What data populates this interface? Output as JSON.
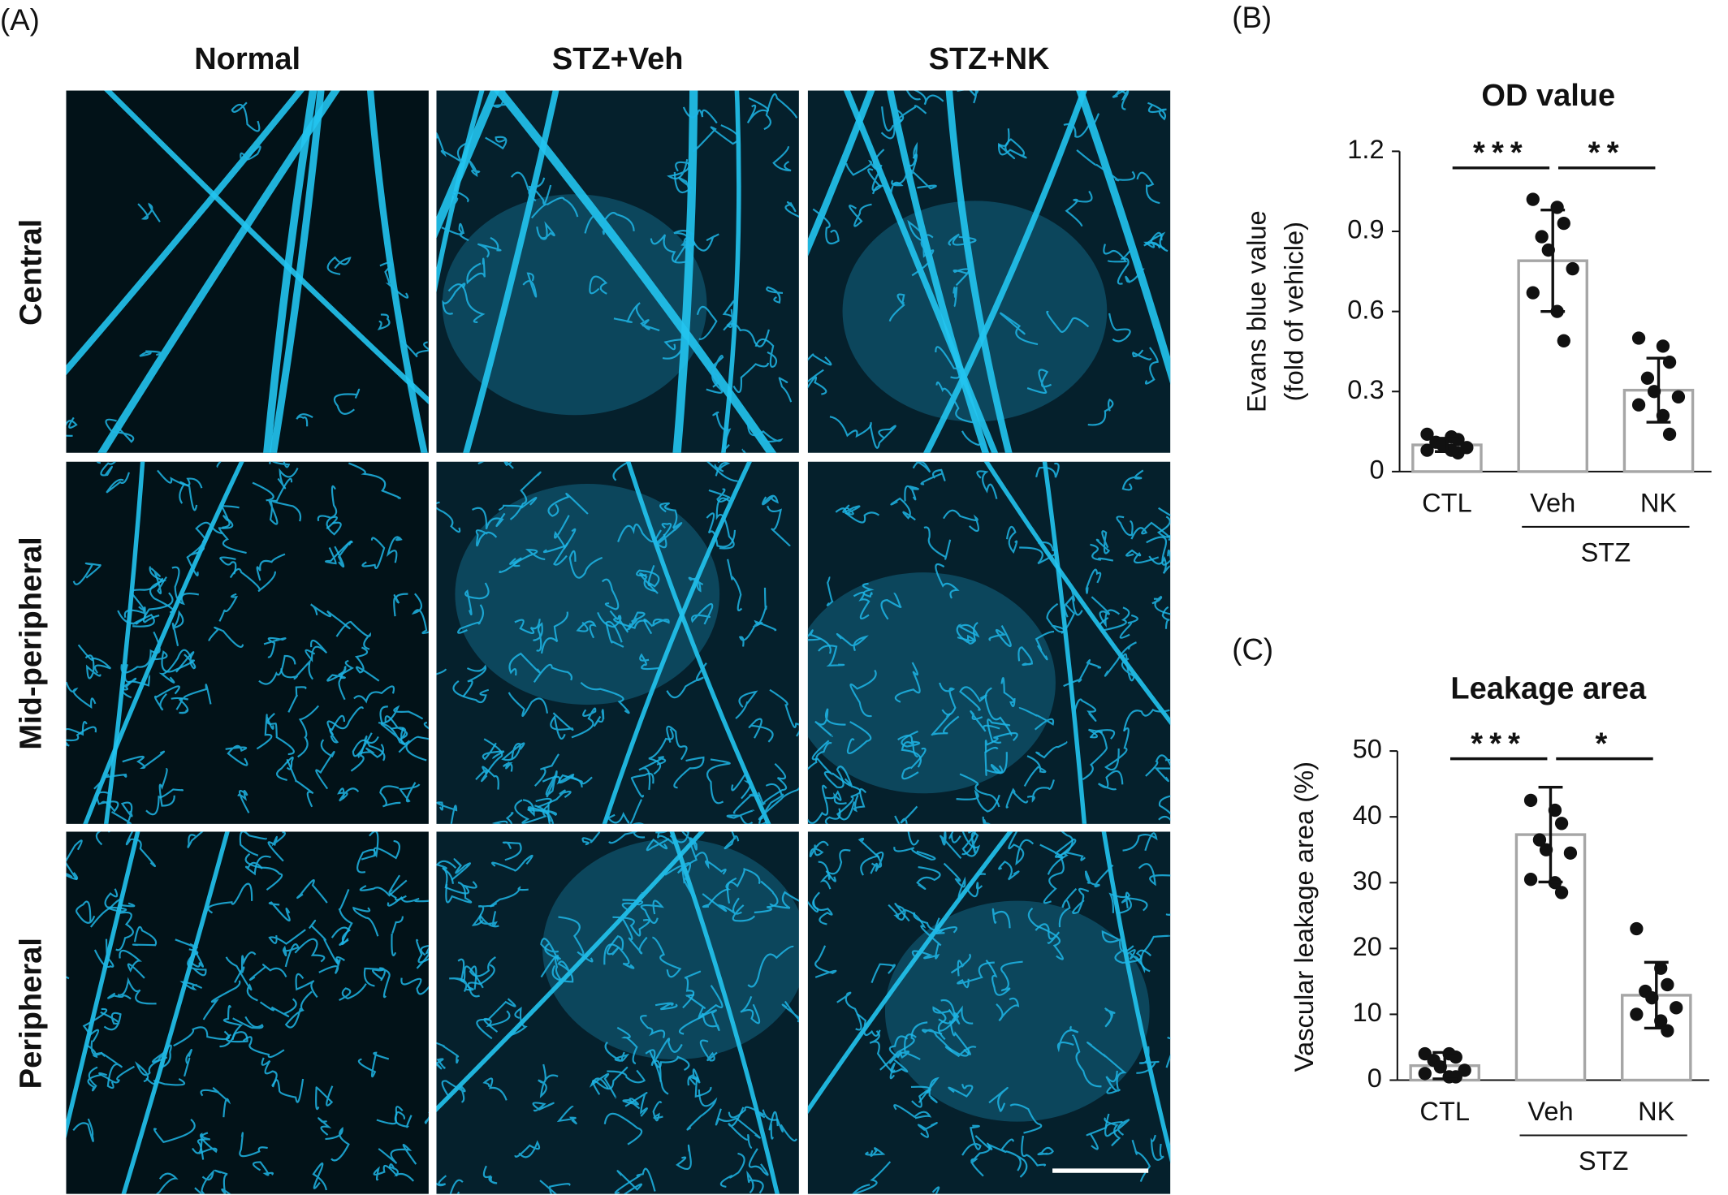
{
  "panel_a": {
    "label": "(A)",
    "columns": [
      "Normal",
      "STZ+Veh",
      "STZ+NK"
    ],
    "rows": [
      "Central",
      "Mid-peripheral",
      "Peripheral"
    ]
  },
  "chart_data": [
    {
      "type": "bar",
      "panel": "(B)",
      "title": "OD value",
      "y_label": [
        "Evans blue value",
        "(fold of vehicle)"
      ],
      "categories": [
        "CTL",
        "Veh",
        "NK"
      ],
      "group_label": "STZ",
      "values": [
        0.1,
        0.79,
        0.305
      ],
      "errors": [
        0.025,
        0.19,
        0.12
      ],
      "points": [
        [
          0.14,
          0.13,
          0.12,
          0.11,
          0.1,
          0.09,
          0.08,
          0.08,
          0.07
        ],
        [
          1.02,
          0.99,
          0.93,
          0.88,
          0.83,
          0.76,
          0.67,
          0.6,
          0.49
        ],
        [
          0.5,
          0.47,
          0.41,
          0.35,
          0.3,
          0.28,
          0.25,
          0.21,
          0.14
        ]
      ],
      "significance": [
        "***",
        "**"
      ],
      "color": "#a6a6a6",
      "ylim": [
        0,
        1.2
      ],
      "yticks": [
        0,
        0.3,
        0.6,
        0.9,
        1.2
      ]
    },
    {
      "type": "bar",
      "panel": "(C)",
      "title": "Leakage area",
      "y_label": [
        "Vascular leakage area (%)"
      ],
      "categories": [
        "CTL",
        "Veh",
        "NK"
      ],
      "group_label": "STZ",
      "values": [
        2.2,
        37.3,
        12.9
      ],
      "errors": [
        2,
        7.2,
        5
      ],
      "points": [
        [
          4,
          4,
          3.5,
          3,
          2,
          1.5,
          1,
          0.5,
          0.5
        ],
        [
          42.5,
          41,
          39,
          36.5,
          35,
          34.5,
          30.5,
          30,
          28.5
        ],
        [
          23,
          17,
          14.5,
          13.5,
          12.5,
          11,
          10,
          9,
          7.5
        ]
      ],
      "significance": [
        "***",
        "*"
      ],
      "color": "#a6a6a6",
      "ylim": [
        0,
        50
      ],
      "yticks": [
        0,
        10,
        20,
        30,
        40,
        50
      ]
    }
  ]
}
